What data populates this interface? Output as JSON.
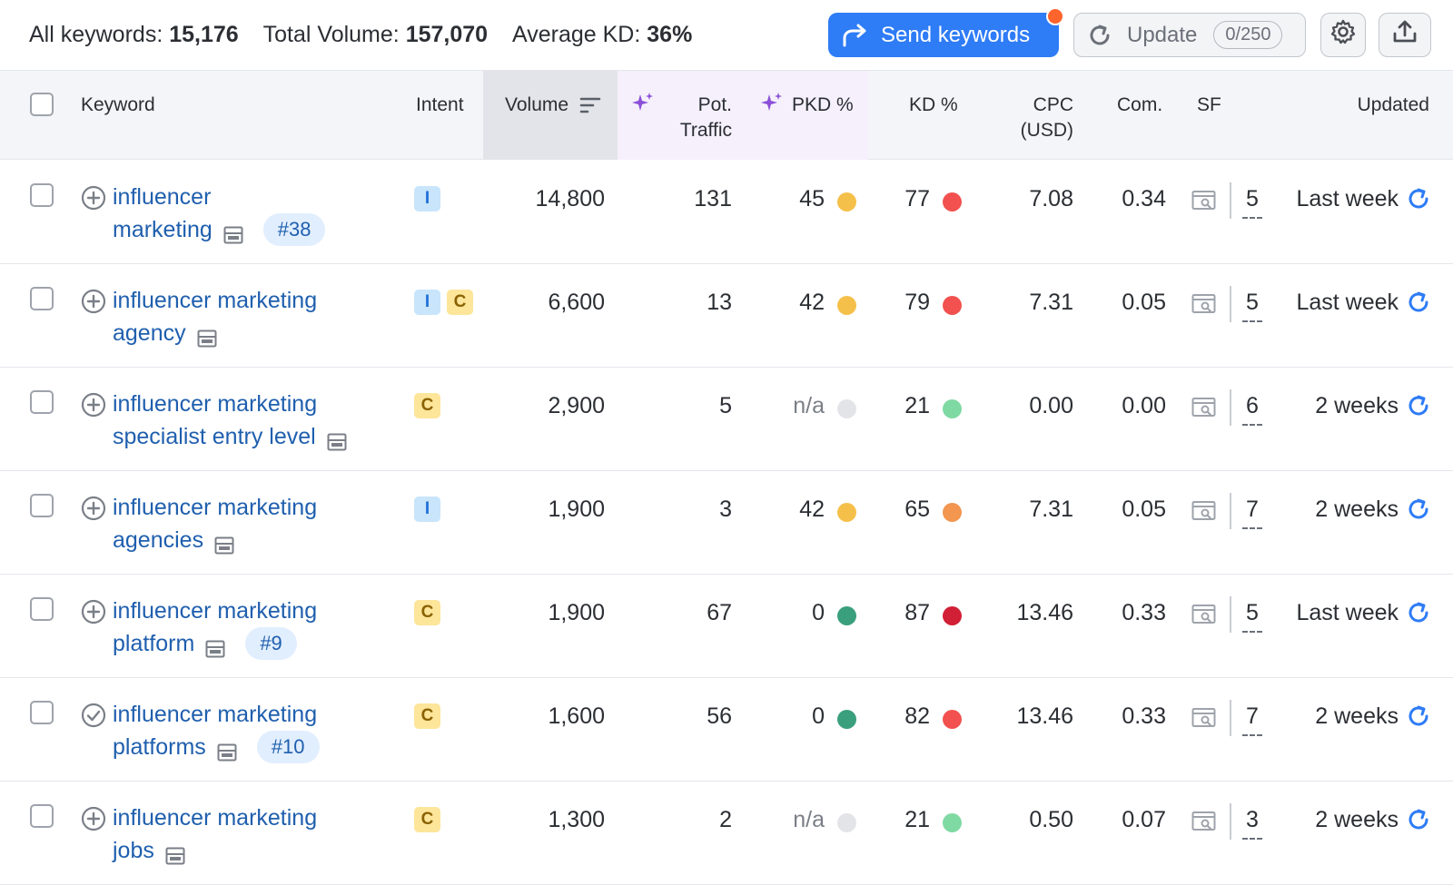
{
  "stats": {
    "all_keywords_label": "All keywords:",
    "all_keywords_value": "15,176",
    "total_volume_label": "Total Volume:",
    "total_volume_value": "157,070",
    "avg_kd_label": "Average KD:",
    "avg_kd_value": "36%"
  },
  "toolbar": {
    "send_label": "Send keywords",
    "update_label": "Update",
    "update_counter": "0/250"
  },
  "columns": {
    "keyword": "Keyword",
    "intent": "Intent",
    "volume": "Volume",
    "pot_traffic_1": "Pot.",
    "pot_traffic_2": "Traffic",
    "pkd": "PKD %",
    "kd": "KD %",
    "cpc_1": "CPC",
    "cpc_2": "(USD)",
    "com": "Com.",
    "sf": "SF",
    "updated": "Updated"
  },
  "colors": {
    "accent": "#2e7cf6",
    "link": "#1f5fae",
    "notif": "#ff642d",
    "ai_purple": "#8b4fd8"
  },
  "rows": [
    {
      "line1": "influencer",
      "line2": "marketing",
      "badge": "#38",
      "added": false,
      "intents": [
        "I"
      ],
      "volume": "14,800",
      "pot_traffic": "131",
      "pkd": "45",
      "pkd_color": "#f5c04a",
      "kd": "77",
      "kd_color": "#f2514f",
      "cpc": "7.08",
      "com": "0.34",
      "sf": "5",
      "updated": "Last week"
    },
    {
      "line1": "influencer marketing",
      "line2": "agency",
      "badge": "",
      "added": false,
      "intents": [
        "I",
        "C"
      ],
      "volume": "6,600",
      "pot_traffic": "13",
      "pkd": "42",
      "pkd_color": "#f5c04a",
      "kd": "79",
      "kd_color": "#f2514f",
      "cpc": "7.31",
      "com": "0.05",
      "sf": "5",
      "updated": "Last week"
    },
    {
      "line1": "influencer marketing",
      "line2": "specialist entry level",
      "badge": "",
      "added": false,
      "intents": [
        "C"
      ],
      "volume": "2,900",
      "pot_traffic": "5",
      "pkd": "n/a",
      "pkd_color": "#e3e4e8",
      "kd": "21",
      "kd_color": "#7fd9a3",
      "cpc": "0.00",
      "com": "0.00",
      "sf": "6",
      "updated": "2 weeks"
    },
    {
      "line1": "influencer marketing",
      "line2": "agencies",
      "badge": "",
      "added": false,
      "intents": [
        "I"
      ],
      "volume": "1,900",
      "pot_traffic": "3",
      "pkd": "42",
      "pkd_color": "#f5c04a",
      "kd": "65",
      "kd_color": "#f29650",
      "cpc": "7.31",
      "com": "0.05",
      "sf": "7",
      "updated": "2 weeks"
    },
    {
      "line1": "influencer marketing",
      "line2": "platform",
      "badge": "#9",
      "added": false,
      "intents": [
        "C"
      ],
      "volume": "1,900",
      "pot_traffic": "67",
      "pkd": "0",
      "pkd_color": "#3a9f7c",
      "kd": "87",
      "kd_color": "#d11f35",
      "cpc": "13.46",
      "com": "0.33",
      "sf": "5",
      "updated": "Last week"
    },
    {
      "line1": "influencer marketing",
      "line2": "platforms",
      "badge": "#10",
      "added": true,
      "intents": [
        "C"
      ],
      "volume": "1,600",
      "pot_traffic": "56",
      "pkd": "0",
      "pkd_color": "#3a9f7c",
      "kd": "82",
      "kd_color": "#f2514f",
      "cpc": "13.46",
      "com": "0.33",
      "sf": "7",
      "updated": "2 weeks"
    },
    {
      "line1": "influencer marketing",
      "line2": "jobs",
      "badge": "",
      "added": false,
      "intents": [
        "C"
      ],
      "volume": "1,300",
      "pot_traffic": "2",
      "pkd": "n/a",
      "pkd_color": "#e3e4e8",
      "kd": "21",
      "kd_color": "#7fd9a3",
      "cpc": "0.50",
      "com": "0.07",
      "sf": "3",
      "updated": "2 weeks"
    }
  ]
}
